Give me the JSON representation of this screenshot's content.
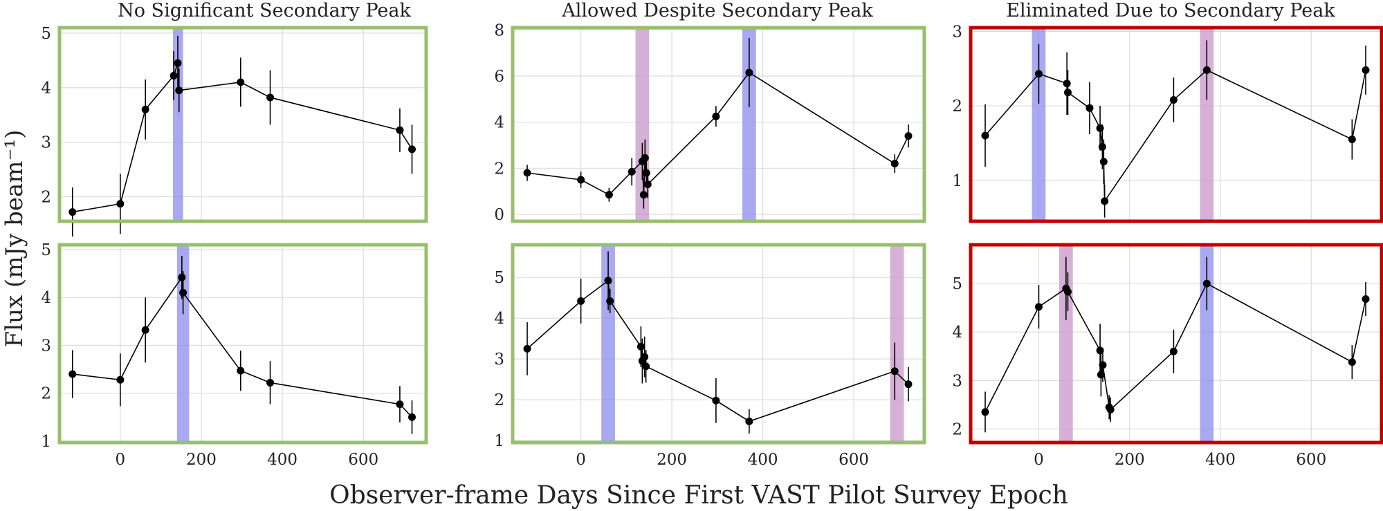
{
  "figure": {
    "ylabel": "Flux (mJy beam⁻¹)",
    "xlabel": "Observer-frame Days Since First VAST Pilot Survey Epoch",
    "column_titles": [
      "No Significant Secondary Peak",
      "Allowed Despite Secondary Peak",
      "Eliminated Due to Secondary Peak"
    ],
    "colors": {
      "allowed_frame": "#98be6e",
      "eliminated_frame": "#c00000",
      "primary_band": "#8c8cee",
      "secondary_band": "#c896c8",
      "line": "#000000"
    }
  },
  "chart_data": [
    {
      "type": "line",
      "title": "No Significant Secondary Peak",
      "frame": "allowed",
      "xlim": [
        -150,
        755
      ],
      "ylim": [
        1.55,
        5.1
      ],
      "yticks": [
        2,
        3,
        4,
        5
      ],
      "xticks": [
        0,
        200,
        400,
        600
      ],
      "grid": true,
      "bands": [
        {
          "x": [
            130,
            155
          ],
          "kind": "primary"
        }
      ],
      "points": [
        {
          "x": -118,
          "y": 1.72,
          "err": 0.45
        },
        {
          "x": 0,
          "y": 1.87,
          "err": 0.55
        },
        {
          "x": 62,
          "y": 3.6,
          "err": 0.55
        },
        {
          "x": 132,
          "y": 4.22,
          "err": 0.45
        },
        {
          "x": 142,
          "y": 4.45,
          "err": 0.5
        },
        {
          "x": 145,
          "y": 3.95,
          "err": 0.4
        },
        {
          "x": 297,
          "y": 4.1,
          "err": 0.45
        },
        {
          "x": 370,
          "y": 3.82,
          "err": 0.5
        },
        {
          "x": 690,
          "y": 3.22,
          "err": 0.4
        },
        {
          "x": 720,
          "y": 2.87,
          "err": 0.45
        }
      ]
    },
    {
      "type": "line",
      "title": "Allowed Despite Secondary Peak",
      "frame": "allowed",
      "xlim": [
        -150,
        755
      ],
      "ylim": [
        -0.3,
        8.1
      ],
      "yticks": [
        0,
        2,
        4,
        6,
        8
      ],
      "xticks": [
        0,
        200,
        400,
        600
      ],
      "grid": true,
      "bands": [
        {
          "x": [
            120,
            150
          ],
          "kind": "secondary"
        },
        {
          "x": 1,
          "kind": "none"
        },
        {
          "x": [
            355,
            385
          ],
          "kind": "primary"
        }
      ],
      "points": [
        {
          "x": -118,
          "y": 1.8,
          "err": 0.35
        },
        {
          "x": 0,
          "y": 1.5,
          "err": 0.35
        },
        {
          "x": 62,
          "y": 0.85,
          "err": 0.3
        },
        {
          "x": 112,
          "y": 1.85,
          "err": 0.6
        },
        {
          "x": 135,
          "y": 2.3,
          "err": 0.8
        },
        {
          "x": 138,
          "y": 0.85,
          "err": 0.6
        },
        {
          "x": 141,
          "y": 2.45,
          "err": 0.8
        },
        {
          "x": 144,
          "y": 1.8,
          "err": 0.6
        },
        {
          "x": 147,
          "y": 1.3,
          "err": 0.6
        },
        {
          "x": 297,
          "y": 4.25,
          "err": 0.45
        },
        {
          "x": 370,
          "y": 6.15,
          "err": 1.5
        },
        {
          "x": 690,
          "y": 2.2,
          "err": 0.4
        },
        {
          "x": 720,
          "y": 3.4,
          "err": 0.5
        }
      ]
    },
    {
      "type": "line",
      "title": "Eliminated Due to Secondary Peak",
      "frame": "eliminated",
      "xlim": [
        -150,
        755
      ],
      "ylim": [
        0.45,
        3.05
      ],
      "yticks": [
        1,
        2,
        3
      ],
      "xticks": [
        0,
        200,
        400,
        600
      ],
      "grid": true,
      "bands": [
        {
          "x": [
            -15,
            15
          ],
          "kind": "primary"
        },
        {
          "x": [
            355,
            385
          ],
          "kind": "secondary"
        }
      ],
      "points": [
        {
          "x": -118,
          "y": 1.6,
          "err": 0.42
        },
        {
          "x": 0,
          "y": 2.43,
          "err": 0.4
        },
        {
          "x": 62,
          "y": 2.3,
          "err": 0.42
        },
        {
          "x": 64,
          "y": 2.18,
          "err": 0.3
        },
        {
          "x": 112,
          "y": 1.97,
          "err": 0.35
        },
        {
          "x": 135,
          "y": 1.7,
          "err": 0.3
        },
        {
          "x": 140,
          "y": 1.45,
          "err": 0.3
        },
        {
          "x": 143,
          "y": 1.25,
          "err": 0.3
        },
        {
          "x": 145,
          "y": 0.72,
          "err": 0.22
        },
        {
          "x": 297,
          "y": 2.08,
          "err": 0.3
        },
        {
          "x": 370,
          "y": 2.48,
          "err": 0.4
        },
        {
          "x": 690,
          "y": 1.55,
          "err": 0.27
        },
        {
          "x": 720,
          "y": 2.48,
          "err": 0.33
        }
      ]
    },
    {
      "type": "line",
      "title": "",
      "frame": "allowed",
      "xlim": [
        -150,
        755
      ],
      "ylim": [
        0.97,
        5.1
      ],
      "yticks": [
        1,
        2,
        3,
        4,
        5
      ],
      "xticks": [
        0,
        200,
        400,
        600
      ],
      "grid": true,
      "bands": [
        {
          "x": [
            140,
            170
          ],
          "kind": "primary"
        }
      ],
      "points": [
        {
          "x": -118,
          "y": 2.4,
          "err": 0.5
        },
        {
          "x": 0,
          "y": 2.28,
          "err": 0.55
        },
        {
          "x": 62,
          "y": 3.32,
          "err": 0.68
        },
        {
          "x": 152,
          "y": 4.42,
          "err": 0.45
        },
        {
          "x": 155,
          "y": 4.1,
          "err": 0.45
        },
        {
          "x": 297,
          "y": 2.47,
          "err": 0.42
        },
        {
          "x": 370,
          "y": 2.22,
          "err": 0.45
        },
        {
          "x": 690,
          "y": 1.77,
          "err": 0.38
        },
        {
          "x": 720,
          "y": 1.5,
          "err": 0.35
        }
      ]
    },
    {
      "type": "line",
      "title": "",
      "frame": "allowed",
      "xlim": [
        -150,
        755
      ],
      "ylim": [
        0.95,
        5.8
      ],
      "yticks": [
        1,
        2,
        3,
        4,
        5
      ],
      "xticks": [
        0,
        200,
        400,
        600
      ],
      "grid": true,
      "bands": [
        {
          "x": [
            45,
            75
          ],
          "kind": "primary"
        },
        {
          "x": [
            680,
            710
          ],
          "kind": "secondary"
        }
      ],
      "points": [
        {
          "x": -118,
          "y": 3.25,
          "err": 0.65
        },
        {
          "x": 0,
          "y": 4.42,
          "err": 0.55
        },
        {
          "x": 60,
          "y": 4.92,
          "err": 0.72
        },
        {
          "x": 64,
          "y": 4.42,
          "err": 0.3
        },
        {
          "x": 132,
          "y": 3.3,
          "err": 0.5
        },
        {
          "x": 135,
          "y": 2.95,
          "err": 0.55
        },
        {
          "x": 140,
          "y": 3.05,
          "err": 0.5
        },
        {
          "x": 143,
          "y": 2.82,
          "err": 0.4
        },
        {
          "x": 297,
          "y": 1.98,
          "err": 0.55
        },
        {
          "x": 370,
          "y": 1.47,
          "err": 0.3
        },
        {
          "x": 690,
          "y": 2.7,
          "err": 0.7
        },
        {
          "x": 720,
          "y": 2.38,
          "err": 0.42
        }
      ]
    },
    {
      "type": "line",
      "title": "",
      "frame": "eliminated",
      "xlim": [
        -150,
        755
      ],
      "ylim": [
        1.72,
        5.8
      ],
      "yticks": [
        2,
        3,
        4,
        5
      ],
      "xticks": [
        0,
        200,
        400,
        600
      ],
      "grid": true,
      "bands": [
        {
          "x": [
            45,
            75
          ],
          "kind": "secondary"
        },
        {
          "x": [
            355,
            385
          ],
          "kind": "primary"
        }
      ],
      "points": [
        {
          "x": -118,
          "y": 2.35,
          "err": 0.42
        },
        {
          "x": 0,
          "y": 4.52,
          "err": 0.45
        },
        {
          "x": 60,
          "y": 4.9,
          "err": 0.65
        },
        {
          "x": 64,
          "y": 4.83,
          "err": 0.4
        },
        {
          "x": 135,
          "y": 3.62,
          "err": 0.55
        },
        {
          "x": 137,
          "y": 3.12,
          "err": 0.45
        },
        {
          "x": 141,
          "y": 3.32,
          "err": 0.35
        },
        {
          "x": 155,
          "y": 2.45,
          "err": 0.25
        },
        {
          "x": 158,
          "y": 2.4,
          "err": 0.25
        },
        {
          "x": 297,
          "y": 3.6,
          "err": 0.45
        },
        {
          "x": 370,
          "y": 5.0,
          "err": 0.55
        },
        {
          "x": 690,
          "y": 3.38,
          "err": 0.35
        },
        {
          "x": 720,
          "y": 4.68,
          "err": 0.35
        }
      ]
    }
  ]
}
